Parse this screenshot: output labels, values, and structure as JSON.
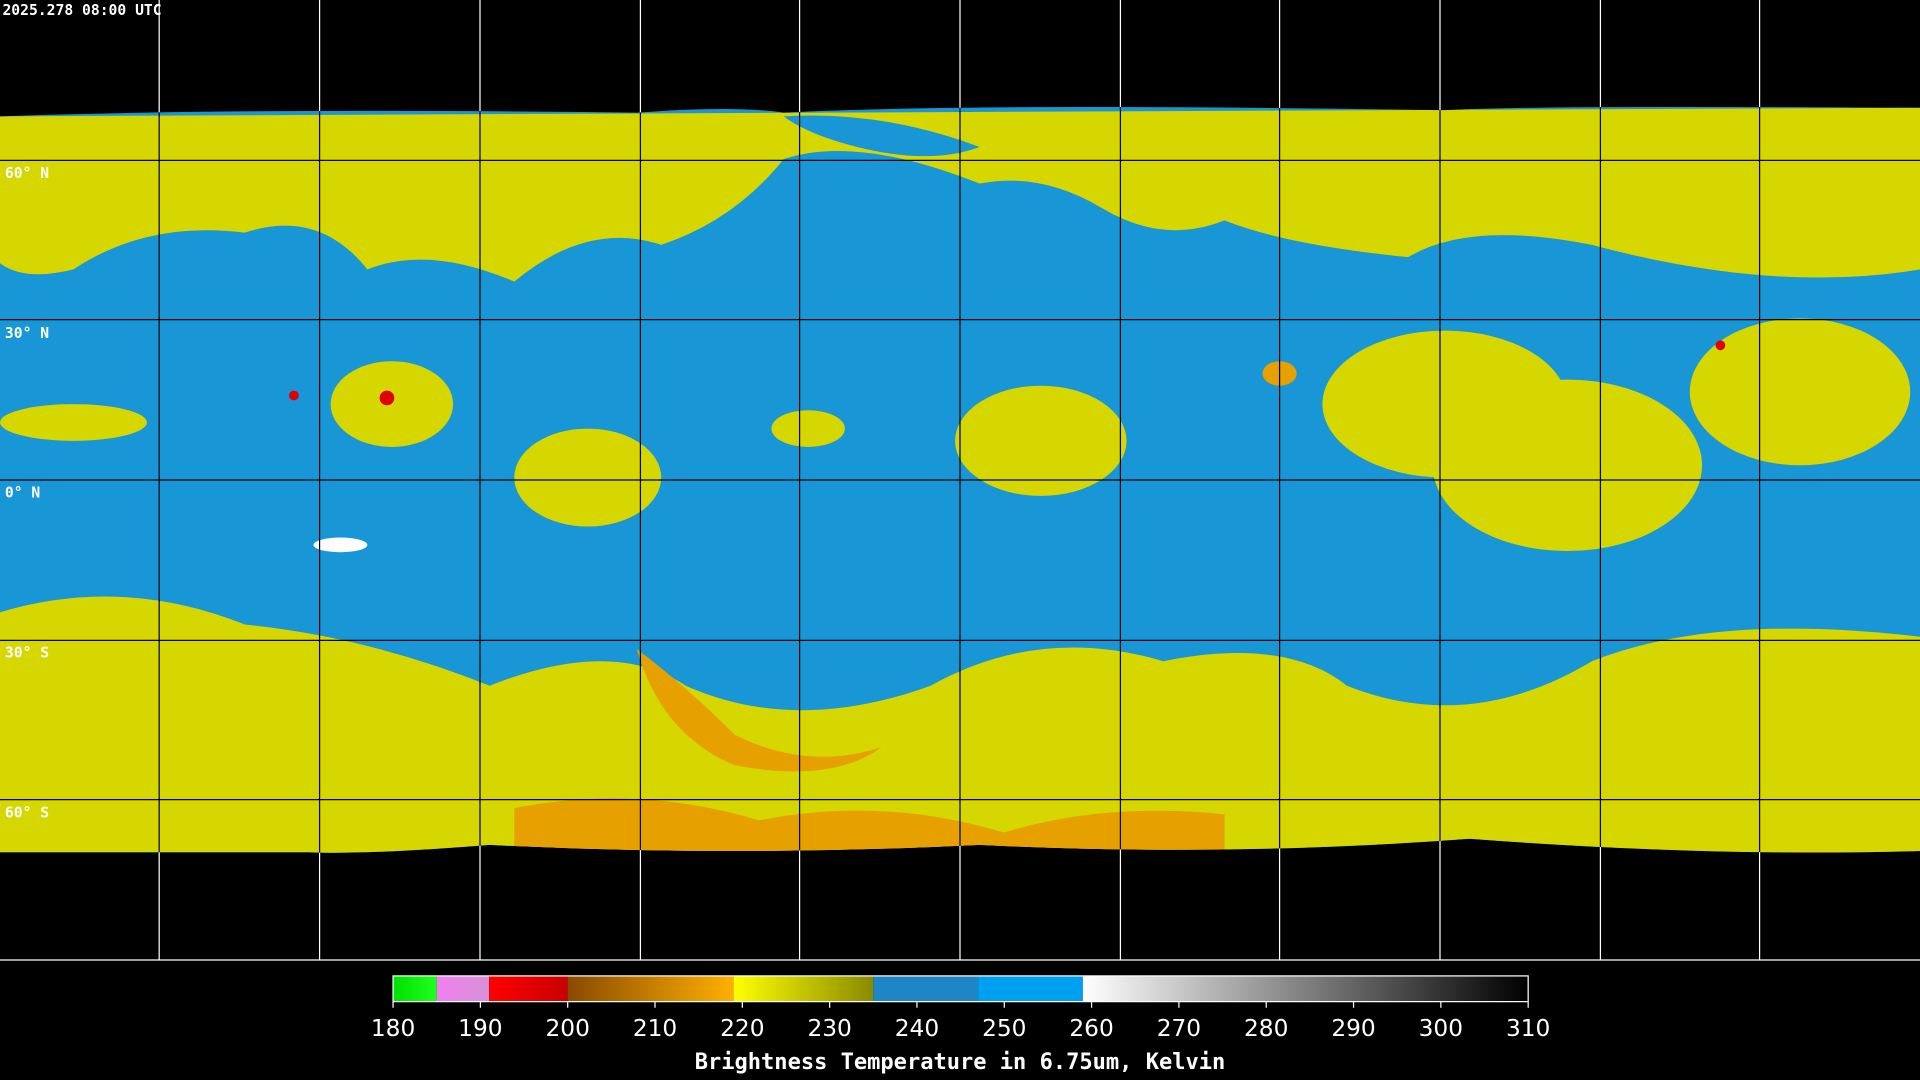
{
  "timestamp": "2025.278 08:00 UTC",
  "lat_labels": [
    "60° N",
    "30° N",
    "0° N",
    "30° S",
    "60° S"
  ],
  "colorbar": {
    "title": "Brightness Temperature in 6.75um, Kelvin",
    "range": [
      180,
      310
    ],
    "ticks": [
      180,
      190,
      200,
      210,
      220,
      230,
      240,
      250,
      260,
      270,
      280,
      290,
      300,
      310
    ],
    "segments": [
      {
        "from": 180,
        "to": 185,
        "colors": [
          "#00e000",
          "#20ff20"
        ]
      },
      {
        "from": 185,
        "to": 191,
        "colors": [
          "#f080f0",
          "#d890d8"
        ]
      },
      {
        "from": 191,
        "to": 200,
        "colors": [
          "#ff0000",
          "#c80000"
        ]
      },
      {
        "from": 200,
        "to": 219,
        "colors": [
          "#8a4a00",
          "#ffb000"
        ]
      },
      {
        "from": 219,
        "to": 235,
        "colors": [
          "#ffff00",
          "#8a8a00"
        ]
      },
      {
        "from": 235,
        "to": 247,
        "colors": [
          "#1e86c4",
          "#1e86c4"
        ]
      },
      {
        "from": 247,
        "to": 259,
        "colors": [
          "#00a0f0",
          "#00a0f0"
        ]
      },
      {
        "from": 259,
        "to": 310,
        "colors": [
          "#ffffff",
          "#000000"
        ]
      }
    ]
  }
}
